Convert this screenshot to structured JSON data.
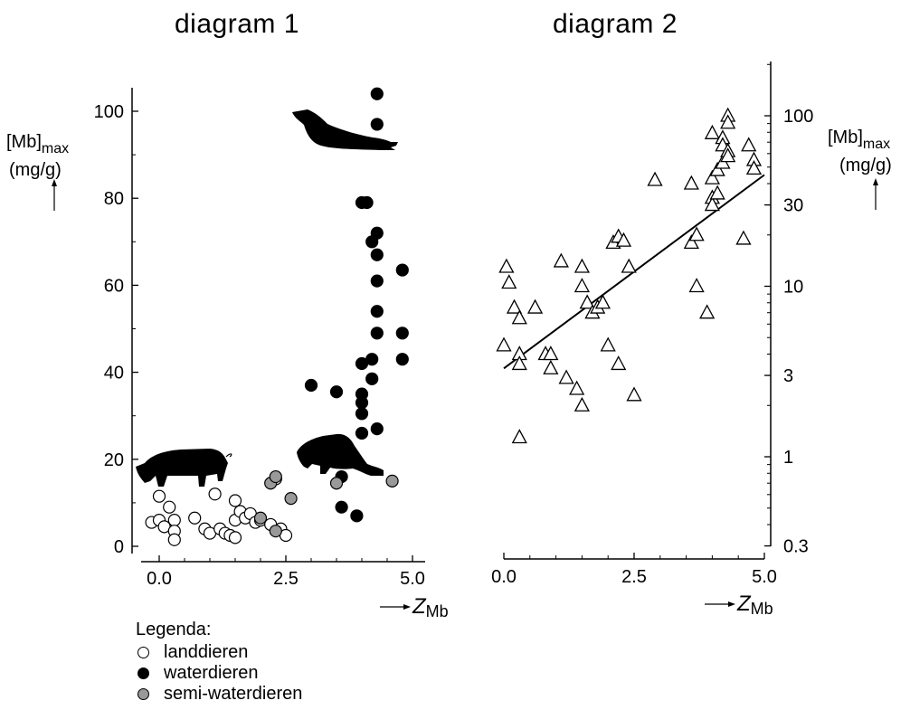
{
  "titles": {
    "left": "diagram 1",
    "right": "diagram 2"
  },
  "left_ylabel": {
    "main": "[Mb]",
    "sub": "max",
    "unit": "(mg/g)"
  },
  "right_ylabel": {
    "main": "[Mb]",
    "sub": "max",
    "unit": "(mg/g)"
  },
  "xlabel": {
    "main": "Z",
    "sub": "Mb"
  },
  "legend": {
    "title": "Legenda:",
    "items": [
      {
        "label": "landdieren",
        "fill": "#ffffff"
      },
      {
        "label": "waterdieren",
        "fill": "#000000"
      },
      {
        "label": "semi-waterdieren",
        "fill": "#999999"
      }
    ]
  },
  "silhouettes": [
    "pig-silhouette",
    "seal-silhouette",
    "beaver-silhouette"
  ],
  "chart_data": [
    {
      "type": "scatter",
      "title": "diagram 1",
      "xlabel": "Z_Mb",
      "ylabel": "[Mb]max (mg/g)",
      "xlim": [
        -0.35,
        5.0
      ],
      "ylim": [
        0,
        105
      ],
      "xticks": [
        "0.0",
        "2.5",
        "5.0"
      ],
      "yticks": [
        "0",
        "20",
        "40",
        "60",
        "80",
        "100"
      ],
      "series": [
        {
          "name": "landdieren",
          "color": "#ffffff",
          "points": [
            [
              -0.15,
              5.5
            ],
            [
              0.0,
              6
            ],
            [
              0.1,
              4.5
            ],
            [
              0.0,
              11.5
            ],
            [
              0.2,
              9
            ],
            [
              0.3,
              6
            ],
            [
              0.3,
              3.5
            ],
            [
              0.3,
              1.5
            ],
            [
              0.7,
              6.5
            ],
            [
              0.9,
              4
            ],
            [
              1.0,
              3
            ],
            [
              1.1,
              12
            ],
            [
              1.2,
              4
            ],
            [
              1.3,
              3
            ],
            [
              1.4,
              2.5
            ],
            [
              1.5,
              2
            ],
            [
              1.5,
              6
            ],
            [
              1.5,
              10.5
            ],
            [
              1.6,
              8
            ],
            [
              1.7,
              6.5
            ],
            [
              1.8,
              7.5
            ],
            [
              1.9,
              5.5
            ],
            [
              2.0,
              6
            ],
            [
              2.2,
              5
            ],
            [
              2.3,
              15.5
            ],
            [
              2.4,
              4
            ],
            [
              2.5,
              2.5
            ]
          ]
        },
        {
          "name": "waterdieren",
          "color": "#000000",
          "points": [
            [
              4.3,
              104
            ],
            [
              4.3,
              97
            ],
            [
              4.0,
              79
            ],
            [
              4.1,
              79
            ],
            [
              4.3,
              72
            ],
            [
              4.2,
              70
            ],
            [
              4.3,
              67
            ],
            [
              4.8,
              63.5
            ],
            [
              4.3,
              61
            ],
            [
              4.3,
              54
            ],
            [
              4.3,
              49
            ],
            [
              4.8,
              49
            ],
            [
              4.0,
              42
            ],
            [
              4.2,
              43
            ],
            [
              4.8,
              43
            ],
            [
              4.2,
              38.5
            ],
            [
              3.0,
              37
            ],
            [
              3.5,
              35.5
            ],
            [
              4.0,
              35
            ],
            [
              4.0,
              33
            ],
            [
              4.0,
              30.5
            ],
            [
              4.3,
              27
            ],
            [
              4.0,
              26
            ],
            [
              3.6,
              16
            ],
            [
              3.6,
              9
            ],
            [
              3.9,
              7
            ]
          ]
        },
        {
          "name": "semi-waterdieren",
          "color": "#999999",
          "points": [
            [
              2.2,
              14.5
            ],
            [
              2.3,
              16
            ],
            [
              2.6,
              11
            ],
            [
              2.0,
              6.5
            ],
            [
              2.3,
              3.5
            ],
            [
              3.5,
              14.5
            ],
            [
              4.6,
              15
            ]
          ]
        }
      ]
    },
    {
      "type": "scatter",
      "title": "diagram 2",
      "xlabel": "Z_Mb",
      "ylabel": "[Mb]max (mg/g)",
      "yscale": "log",
      "xlim": [
        0.0,
        5.0
      ],
      "ylim": [
        0.3,
        200
      ],
      "xticks": [
        "0.0",
        "2.5",
        "5.0"
      ],
      "yticks": [
        "0.3",
        "1",
        "3",
        "10",
        "30",
        "100"
      ],
      "series": [
        {
          "marker": "triangle",
          "points": [
            [
              0.0,
              4.5
            ],
            [
              0.05,
              13
            ],
            [
              0.1,
              10.5
            ],
            [
              0.2,
              7.5
            ],
            [
              0.3,
              6.5
            ],
            [
              0.3,
              4
            ],
            [
              0.3,
              3.5
            ],
            [
              0.3,
              1.3
            ],
            [
              0.6,
              7.5
            ],
            [
              0.8,
              4
            ],
            [
              0.9,
              4
            ],
            [
              0.9,
              3.3
            ],
            [
              1.1,
              14
            ],
            [
              1.2,
              2.9
            ],
            [
              1.4,
              2.5
            ],
            [
              1.5,
              2
            ],
            [
              1.5,
              10
            ],
            [
              1.5,
              13
            ],
            [
              1.6,
              8
            ],
            [
              1.7,
              7
            ],
            [
              1.8,
              7.5
            ],
            [
              1.9,
              8
            ],
            [
              2.0,
              4.5
            ],
            [
              2.1,
              18
            ],
            [
              2.2,
              19.5
            ],
            [
              2.2,
              3.5
            ],
            [
              2.3,
              18.5
            ],
            [
              2.4,
              13
            ],
            [
              2.5,
              2.3
            ],
            [
              2.9,
              42
            ],
            [
              3.6,
              18
            ],
            [
              3.6,
              40
            ],
            [
              3.7,
              20
            ],
            [
              3.7,
              10
            ],
            [
              3.9,
              7
            ],
            [
              4.0,
              79
            ],
            [
              4.0,
              43
            ],
            [
              4.0,
              33
            ],
            [
              4.0,
              30
            ],
            [
              4.1,
              48
            ],
            [
              4.1,
              35
            ],
            [
              4.2,
              74
            ],
            [
              4.2,
              67
            ],
            [
              4.2,
              53
            ],
            [
              4.3,
              100
            ],
            [
              4.3,
              91
            ],
            [
              4.3,
              62
            ],
            [
              4.3,
              58
            ],
            [
              4.6,
              19
            ],
            [
              4.7,
              67
            ],
            [
              4.8,
              55
            ],
            [
              4.8,
              49
            ]
          ]
        }
      ],
      "trendline": {
        "x": [
          0.0,
          5.0
        ],
        "y": [
          3.3,
          45
        ]
      }
    }
  ]
}
